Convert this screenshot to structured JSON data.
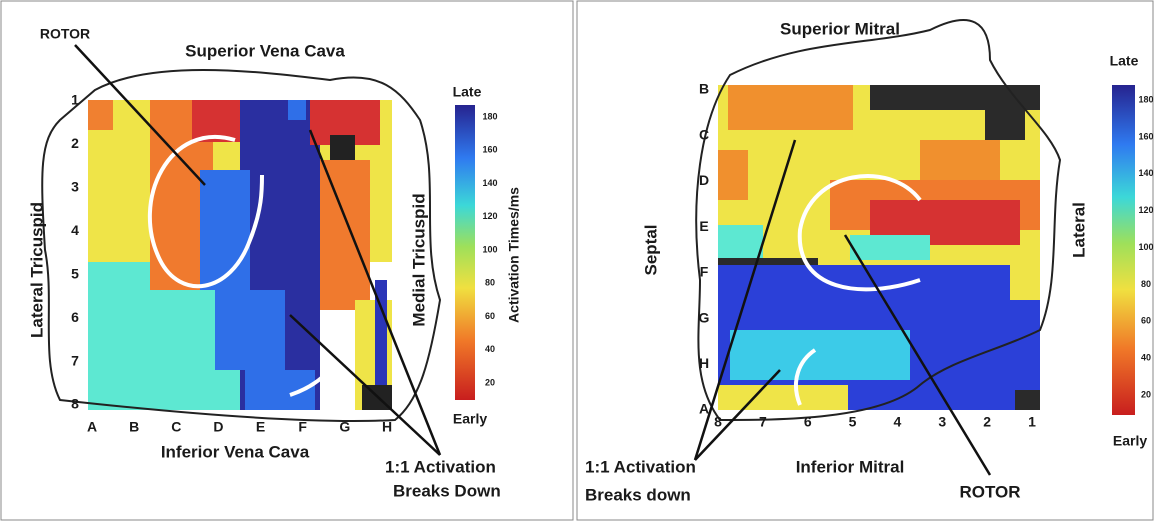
{
  "left_map": {
    "title": "Superior Vena Cava",
    "bottom_label": "Inferior Vena Cava",
    "left_label": "Lateral Tricuspid",
    "right_label": "Medial Tricuspid",
    "rotor_label": "ROTOR",
    "row_labels": [
      "1",
      "2",
      "3",
      "4",
      "5",
      "6",
      "7",
      "8"
    ],
    "column_labels": [
      "A",
      "B",
      "C",
      "D",
      "E",
      "F",
      "G",
      "H"
    ],
    "colorbar": {
      "top_label": "Late",
      "bottom_label": "Early",
      "title": "Activation Times/ms",
      "ticks": [
        "180",
        "160",
        "140",
        "120",
        "100",
        "80",
        "60",
        "40",
        "20"
      ]
    },
    "annotation": [
      "1:1 Activation",
      "Breaks Down"
    ]
  },
  "right_map": {
    "title": "Superior Mitral",
    "bottom_label": "Inferior Mitral",
    "left_label": "Septal",
    "right_label": "Lateral",
    "rotor_label": "ROTOR",
    "row_labels": [
      "B",
      "C",
      "D",
      "E",
      "F",
      "G",
      "H",
      "A"
    ],
    "column_labels": [
      "8",
      "7",
      "6",
      "5",
      "4",
      "3",
      "2",
      "1"
    ],
    "colorbar": {
      "top_label": "Late",
      "bottom_label": "Early",
      "ticks": [
        "180",
        "160",
        "140",
        "120",
        "100",
        "80",
        "60",
        "40",
        "20"
      ]
    },
    "annotation": [
      "1:1 Activation",
      "Breaks down"
    ]
  }
}
